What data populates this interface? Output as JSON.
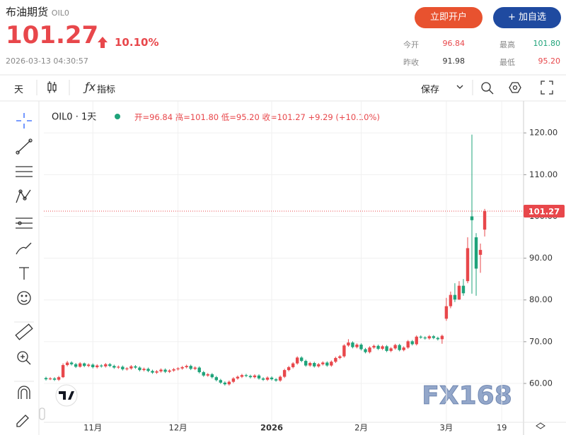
{
  "header": {
    "title": "布油期货",
    "code": "OIL0",
    "price": "101.27",
    "change": "10.10%",
    "time": "2026-03-13 04:30:57",
    "buttons": [
      "立即开户",
      "+ 加自选"
    ],
    "stats": [
      {
        "label": "今开",
        "value": "96.84"
      },
      {
        "label": "最高",
        "value": "101.80"
      },
      {
        "label": "昨收",
        "value": "91.98"
      },
      {
        "label": "最低",
        "value": "95.20"
      }
    ]
  },
  "toolbar": {
    "interval": "天",
    "indicators": "指标",
    "save": "保存"
  },
  "legend": {
    "symbol": "OIL0 · 1天",
    "items": [
      "开=96.84",
      "高=101.80",
      "低=95.20",
      "收=101.27",
      "+9.29 (+10.10%)"
    ]
  },
  "watermark": "FX168",
  "chart_data": {
    "type": "candlestick",
    "up_color": "#e8474b",
    "down_color": "#1fa37a",
    "grid": true,
    "categories": [
      null,
      null,
      null,
      null,
      null,
      null,
      null,
      null,
      null,
      null,
      null,
      "11月",
      null,
      null,
      null,
      null,
      null,
      null,
      null,
      null,
      null,
      null,
      null,
      null,
      null,
      null,
      null,
      null,
      null,
      null,
      null,
      "12月",
      null,
      null,
      null,
      null,
      null,
      null,
      null,
      null,
      null,
      null,
      null,
      null,
      null,
      null,
      null,
      null,
      null,
      null,
      null,
      null,
      null,
      "2026",
      null,
      null,
      null,
      null,
      null,
      null,
      null,
      null,
      null,
      null,
      null,
      null,
      null,
      null,
      null,
      null,
      null,
      null,
      null,
      null,
      "2月",
      null,
      null,
      null,
      null,
      null,
      null,
      null,
      null,
      null,
      null,
      null,
      null,
      null,
      null,
      null,
      null,
      null,
      null,
      null,
      "3月",
      null,
      null,
      null,
      null,
      null,
      null,
      null,
      null,
      null,
      null,
      null,
      null,
      "19"
    ],
    "open": [
      61.3,
      61.0,
      61.2,
      60.9,
      61.5,
      64.4,
      65.0,
      64.6,
      64.0,
      64.8,
      64.2,
      64.5,
      63.9,
      64.3,
      64.1,
      64.6,
      64.2,
      63.8,
      64.0,
      63.4,
      63.6,
      64.1,
      63.8,
      63.2,
      63.5,
      63.0,
      62.6,
      62.9,
      63.3,
      62.8,
      63.1,
      63.4,
      63.6,
      63.9,
      64.2,
      63.5,
      63.8,
      62.7,
      61.9,
      62.2,
      61.5,
      60.8,
      60.2,
      59.8,
      60.4,
      61.2,
      61.6,
      62.0,
      61.8,
      61.5,
      61.9,
      61.2,
      60.9,
      61.4,
      61.0,
      60.7,
      61.6,
      63.2,
      63.9,
      64.8,
      66.2,
      65.4,
      64.3,
      64.9,
      64.1,
      64.6,
      65.0,
      64.3,
      65.2,
      66.1,
      66.5,
      69.1,
      69.8,
      68.7,
      69.3,
      68.2,
      67.5,
      68.6,
      69.0,
      68.3,
      68.9,
      67.8,
      68.4,
      69.2,
      68.0,
      68.6,
      70.1,
      69.4,
      71.2,
      71.0,
      70.8,
      71.3,
      70.9,
      70.6,
      75.5,
      78.5,
      81.2,
      80.1,
      83.4,
      84.5,
      100.0,
      95.0,
      90.8,
      96.84,
      null,
      null,
      null,
      null
    ],
    "high": [
      61.6,
      61.5,
      61.5,
      61.8,
      64.8,
      65.4,
      65.3,
      64.9,
      65.1,
      65.0,
      64.8,
      64.8,
      64.6,
      64.6,
      64.9,
      64.9,
      64.5,
      64.3,
      64.3,
      63.9,
      64.4,
      64.4,
      64.1,
      63.8,
      63.8,
      63.3,
      63.2,
      63.6,
      63.6,
      63.4,
      63.7,
      63.9,
      64.2,
      64.5,
      64.5,
      64.1,
      64.1,
      63.0,
      62.5,
      62.5,
      61.8,
      61.1,
      60.5,
      60.7,
      61.5,
      61.9,
      62.3,
      62.3,
      62.1,
      62.2,
      62.2,
      61.5,
      61.7,
      61.7,
      61.3,
      61.9,
      63.5,
      64.2,
      65.1,
      66.5,
      66.5,
      65.7,
      65.2,
      65.2,
      64.9,
      65.3,
      65.3,
      65.5,
      66.4,
      66.8,
      69.4,
      70.6,
      70.1,
      69.6,
      69.6,
      68.5,
      68.9,
      69.3,
      69.3,
      69.2,
      69.2,
      68.7,
      69.5,
      69.5,
      68.9,
      70.4,
      70.4,
      71.5,
      71.5,
      71.3,
      71.6,
      71.6,
      71.2,
      71.7,
      80.5,
      82.0,
      84.0,
      84.5,
      85.0,
      95.0,
      119.6,
      96.0,
      93.5,
      101.8,
      null,
      null,
      null,
      null
    ],
    "low": [
      60.7,
      60.8,
      60.6,
      60.6,
      61.3,
      64.1,
      64.3,
      63.7,
      63.8,
      63.9,
      63.9,
      63.6,
      63.6,
      63.8,
      63.8,
      63.9,
      63.5,
      63.5,
      63.1,
      63.1,
      63.3,
      63.5,
      62.9,
      62.9,
      62.7,
      62.3,
      62.3,
      62.6,
      62.5,
      62.5,
      62.8,
      63.1,
      63.3,
      63.6,
      63.2,
      63.2,
      62.4,
      61.6,
      61.6,
      61.2,
      60.5,
      59.9,
      59.5,
      59.5,
      60.1,
      60.9,
      61.3,
      61.5,
      61.2,
      61.2,
      60.9,
      60.6,
      60.6,
      60.7,
      60.4,
      60.4,
      61.3,
      62.9,
      63.6,
      64.5,
      65.1,
      64.0,
      64.0,
      63.8,
      63.8,
      64.3,
      64.0,
      64.0,
      64.9,
      65.8,
      66.2,
      68.8,
      68.4,
      68.4,
      67.9,
      67.2,
      67.2,
      68.3,
      68.0,
      68.0,
      67.5,
      67.5,
      68.1,
      67.7,
      67.7,
      68.3,
      69.1,
      69.1,
      70.7,
      70.5,
      70.5,
      70.6,
      70.3,
      69.5,
      75.0,
      78.0,
      79.5,
      80.0,
      81.0,
      84.0,
      81.5,
      81.0,
      86.5,
      95.2,
      null,
      null,
      null,
      null
    ],
    "close": [
      61.0,
      61.2,
      60.9,
      61.5,
      64.4,
      65.0,
      64.6,
      64.0,
      64.8,
      64.2,
      64.5,
      63.9,
      64.3,
      64.1,
      64.6,
      64.2,
      63.8,
      64.0,
      63.4,
      63.6,
      64.1,
      63.8,
      63.2,
      63.5,
      63.0,
      62.6,
      62.9,
      63.3,
      62.8,
      63.1,
      63.4,
      63.6,
      63.9,
      64.2,
      63.5,
      63.8,
      62.7,
      61.9,
      62.2,
      61.5,
      60.8,
      60.2,
      59.8,
      60.4,
      61.2,
      61.6,
      62.0,
      61.8,
      61.5,
      61.9,
      61.2,
      60.9,
      61.4,
      61.0,
      60.7,
      61.6,
      63.2,
      63.9,
      64.8,
      66.2,
      65.4,
      64.3,
      64.9,
      64.1,
      64.6,
      65.0,
      64.3,
      65.2,
      66.1,
      66.5,
      69.1,
      69.8,
      68.7,
      69.3,
      68.2,
      67.5,
      68.6,
      69.0,
      68.3,
      68.9,
      67.8,
      68.4,
      69.2,
      68.0,
      68.6,
      70.1,
      69.4,
      71.2,
      71.0,
      70.8,
      71.3,
      70.9,
      70.6,
      71.4,
      78.5,
      81.2,
      80.1,
      83.4,
      81.6,
      92.4,
      99.1,
      87.5,
      91.98,
      101.27,
      null,
      null,
      null,
      null
    ],
    "ylim": [
      50.7,
      126.8
    ],
    "yticks": [
      {
        "value": 60,
        "label": "60.00"
      },
      {
        "value": 70,
        "label": "70.00"
      },
      {
        "value": 80,
        "label": "80.00"
      },
      {
        "value": 90,
        "label": "90.00"
      },
      {
        "value": 100,
        "label": "100.00"
      },
      {
        "value": 110,
        "label": "110.00"
      },
      {
        "value": 120,
        "label": "120.00"
      }
    ]
  }
}
